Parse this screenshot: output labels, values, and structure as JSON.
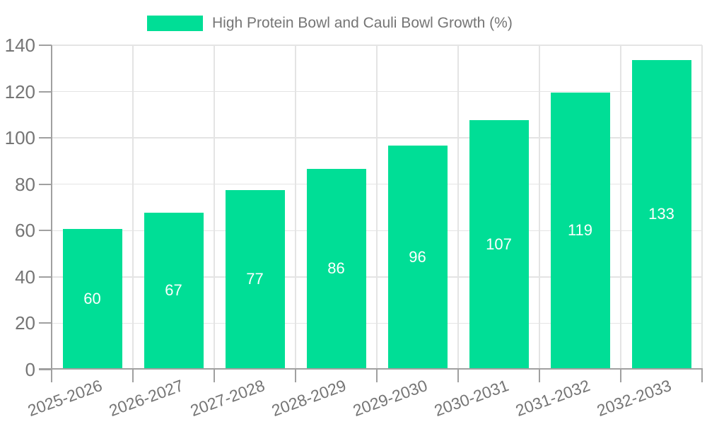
{
  "chart_data": {
    "type": "bar",
    "title": "High Protein Bowl and Cauli Bowl Growth (%)",
    "legend": [
      {
        "label": "High Protein Bowl and Cauli Bowl Growth (%)",
        "color": "#00DE96"
      }
    ],
    "legend_position": "top",
    "categories": [
      "2025-2026",
      "2026-2027",
      "2027-2028",
      "2028-2029",
      "2029-2030",
      "2030-2031",
      "2031-2032",
      "2032-2033"
    ],
    "values": [
      60,
      67,
      77,
      86,
      96,
      107,
      119,
      133
    ],
    "value_labels_position": "inside-center",
    "xlabel": "",
    "ylabel": "",
    "ylim": [
      0,
      140
    ],
    "yticks": [
      0,
      20,
      40,
      60,
      80,
      100,
      120,
      140
    ],
    "grid": true,
    "colors": {
      "bar": "#00DE96",
      "grid": "#e4e4e4",
      "axis": "#a0a0a0",
      "text": "#757575",
      "value_label": "#ffffff"
    }
  }
}
